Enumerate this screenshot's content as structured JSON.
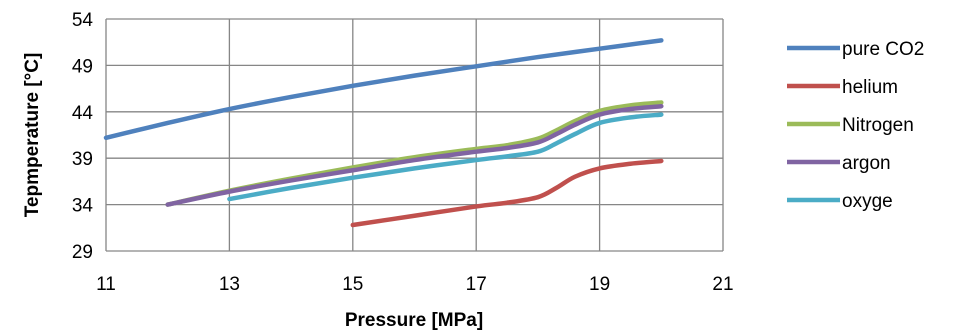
{
  "chart_data": {
    "type": "line",
    "title": "",
    "xlabel": "Pressure [MPa]",
    "ylabel": "Tepmperature [°C]",
    "xlim": [
      11,
      21
    ],
    "ylim": [
      29,
      54
    ],
    "xticks": [
      11,
      13,
      15,
      17,
      19,
      21
    ],
    "yticks": [
      29,
      34,
      39,
      44,
      49,
      54
    ],
    "grid": true,
    "legend_position": "right",
    "series": [
      {
        "name": "pure CO2",
        "color": "#4f81bd",
        "x": [
          11,
          12,
          13,
          14,
          15,
          16,
          17,
          18,
          19,
          20
        ],
        "y": [
          41.2,
          42.8,
          44.3,
          45.6,
          46.8,
          47.9,
          48.9,
          49.9,
          50.8,
          51.7
        ]
      },
      {
        "name": "helium",
        "color": "#c0504d",
        "x": [
          15,
          16,
          17,
          17.5,
          18,
          18.3,
          18.6,
          19,
          19.5,
          20
        ],
        "y": [
          31.8,
          32.8,
          33.8,
          34.2,
          34.8,
          35.8,
          37.0,
          37.9,
          38.4,
          38.7
        ]
      },
      {
        "name": "Nitrogen",
        "color": "#9bbb59",
        "x": [
          12,
          13,
          14,
          15,
          16,
          17,
          17.5,
          18,
          18.3,
          18.6,
          19,
          19.5,
          20
        ],
        "y": [
          34.0,
          35.5,
          36.8,
          38.0,
          39.1,
          40.0,
          40.4,
          41.1,
          42.0,
          43.0,
          44.1,
          44.7,
          45.0
        ]
      },
      {
        "name": "argon",
        "color": "#8064a2",
        "x": [
          12,
          13,
          14,
          15,
          16,
          17,
          17.5,
          18,
          18.3,
          18.6,
          19,
          19.5,
          20
        ],
        "y": [
          34.0,
          35.4,
          36.6,
          37.7,
          38.8,
          39.7,
          40.1,
          40.7,
          41.6,
          42.6,
          43.7,
          44.3,
          44.6
        ]
      },
      {
        "name": "oxyge",
        "color": "#4bacc6",
        "x": [
          13,
          14,
          15,
          16,
          17,
          17.5,
          18,
          18.3,
          18.6,
          19,
          19.5,
          20
        ],
        "y": [
          34.6,
          35.8,
          36.9,
          37.9,
          38.8,
          39.2,
          39.7,
          40.6,
          41.6,
          42.8,
          43.4,
          43.7
        ]
      }
    ]
  }
}
